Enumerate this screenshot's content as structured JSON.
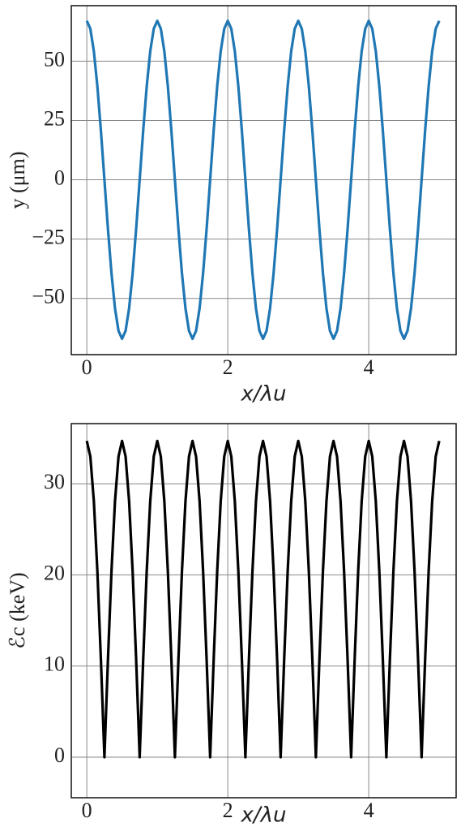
{
  "chart_data": [
    {
      "type": "line",
      "xlabel": "x/λu",
      "ylabel": "y (μm)",
      "color": "#1f77b4",
      "grid": true,
      "xlim": [
        -0.22,
        5.24
      ],
      "ylim": [
        -73.7,
        73.4
      ],
      "xticks": [
        0,
        2,
        4
      ],
      "yticks": [
        {
          "value": -50,
          "label": "−50"
        },
        {
          "value": -25,
          "label": "−25"
        },
        0,
        25,
        50
      ],
      "x": [
        0,
        0.05,
        0.1,
        0.15,
        0.2,
        0.25,
        0.3,
        0.35,
        0.4,
        0.45,
        0.5,
        0.55,
        0.6,
        0.65,
        0.7,
        0.75,
        0.8,
        0.85,
        0.9,
        0.95,
        1,
        1.05,
        1.1,
        1.15,
        1.2,
        1.25,
        1.3,
        1.35,
        1.4,
        1.45,
        1.5,
        1.55,
        1.6,
        1.65,
        1.7,
        1.75,
        1.8,
        1.85,
        1.9,
        1.95,
        2,
        2.05,
        2.1,
        2.15,
        2.2,
        2.25,
        2.3,
        2.35,
        2.4,
        2.45,
        2.5,
        2.55,
        2.6,
        2.65,
        2.7,
        2.75,
        2.8,
        2.85,
        2.9,
        2.95,
        3,
        3.05,
        3.1,
        3.15,
        3.2,
        3.25,
        3.3,
        3.35,
        3.4,
        3.45,
        3.5,
        3.55,
        3.6,
        3.65,
        3.7,
        3.75,
        3.8,
        3.85,
        3.9,
        3.95,
        4,
        4.05,
        4.1,
        4.15,
        4.2,
        4.25,
        4.3,
        4.35,
        4.4,
        4.45,
        4.5,
        4.55,
        4.6,
        4.65,
        4.7,
        4.75,
        4.8,
        4.85,
        4.9,
        4.95,
        5
      ],
      "values": [
        67,
        63.7,
        54.2,
        39.4,
        20.7,
        0,
        -20.7,
        -39.4,
        -54.2,
        -63.7,
        -67,
        -63.7,
        -54.2,
        -39.4,
        -20.7,
        0,
        20.7,
        39.4,
        54.2,
        63.7,
        67,
        63.7,
        54.2,
        39.4,
        20.7,
        0,
        -20.7,
        -39.4,
        -54.2,
        -63.7,
        -67,
        -63.7,
        -54.2,
        -39.4,
        -20.7,
        0,
        20.7,
        39.4,
        54.2,
        63.7,
        67,
        63.7,
        54.2,
        39.4,
        20.7,
        0,
        -20.7,
        -39.4,
        -54.2,
        -63.7,
        -67,
        -63.7,
        -54.2,
        -39.4,
        -20.7,
        0,
        20.7,
        39.4,
        54.2,
        63.7,
        67,
        63.7,
        54.2,
        39.4,
        20.7,
        0,
        -20.7,
        -39.4,
        -54.2,
        -63.7,
        -67,
        -63.7,
        -54.2,
        -39.4,
        -20.7,
        0,
        20.7,
        39.4,
        54.2,
        63.7,
        67,
        63.7,
        54.2,
        39.4,
        20.7,
        0,
        -20.7,
        -39.4,
        -54.2,
        -63.7,
        -67,
        -63.7,
        -54.2,
        -39.4,
        -20.7,
        0,
        20.7,
        39.4,
        54.2,
        63.7,
        67
      ]
    },
    {
      "type": "line",
      "xlabel": "x/λu",
      "ylabel": "ℰc (keV)",
      "color": "#000000",
      "grid": true,
      "xlim": [
        -0.22,
        5.24
      ],
      "ylim": [
        -4.45,
        36.6
      ],
      "xticks": [
        0,
        2,
        4
      ],
      "yticks": [
        0,
        10,
        20,
        30
      ],
      "x": [
        0,
        0.05,
        0.1,
        0.15,
        0.2,
        0.25,
        0.3,
        0.35,
        0.4,
        0.45,
        0.5,
        0.55,
        0.6,
        0.65,
        0.7,
        0.75,
        0.8,
        0.85,
        0.9,
        0.95,
        1,
        1.05,
        1.1,
        1.15,
        1.2,
        1.25,
        1.3,
        1.35,
        1.4,
        1.45,
        1.5,
        1.55,
        1.6,
        1.65,
        1.7,
        1.75,
        1.8,
        1.85,
        1.9,
        1.95,
        2,
        2.05,
        2.1,
        2.15,
        2.2,
        2.25,
        2.3,
        2.35,
        2.4,
        2.45,
        2.5,
        2.55,
        2.6,
        2.65,
        2.7,
        2.75,
        2.8,
        2.85,
        2.9,
        2.95,
        3,
        3.05,
        3.1,
        3.15,
        3.2,
        3.25,
        3.3,
        3.35,
        3.4,
        3.45,
        3.5,
        3.55,
        3.6,
        3.65,
        3.7,
        3.75,
        3.8,
        3.85,
        3.9,
        3.95,
        4,
        4.05,
        4.1,
        4.15,
        4.2,
        4.25,
        4.3,
        4.35,
        4.4,
        4.45,
        4.5,
        4.55,
        4.6,
        4.65,
        4.7,
        4.75,
        4.8,
        4.85,
        4.9,
        4.95,
        5
      ],
      "values": [
        34.7,
        33,
        28.1,
        20.4,
        10.7,
        0,
        10.7,
        20.4,
        28.1,
        33,
        34.7,
        33,
        28.1,
        20.4,
        10.7,
        0,
        10.7,
        20.4,
        28.1,
        33,
        34.7,
        33,
        28.1,
        20.4,
        10.7,
        0,
        10.7,
        20.4,
        28.1,
        33,
        34.7,
        33,
        28.1,
        20.4,
        10.7,
        0,
        10.7,
        20.4,
        28.1,
        33,
        34.7,
        33,
        28.1,
        20.4,
        10.7,
        0,
        10.7,
        20.4,
        28.1,
        33,
        34.7,
        33,
        28.1,
        20.4,
        10.7,
        0,
        10.7,
        20.4,
        28.1,
        33,
        34.7,
        33,
        28.1,
        20.4,
        10.7,
        0,
        10.7,
        20.4,
        28.1,
        33,
        34.7,
        33,
        28.1,
        20.4,
        10.7,
        0,
        10.7,
        20.4,
        28.1,
        33,
        34.7,
        33,
        28.1,
        20.4,
        10.7,
        0,
        10.7,
        20.4,
        28.1,
        33,
        34.7,
        33,
        28.1,
        20.4,
        10.7,
        0,
        10.7,
        20.4,
        28.1,
        33,
        34.7
      ]
    }
  ]
}
